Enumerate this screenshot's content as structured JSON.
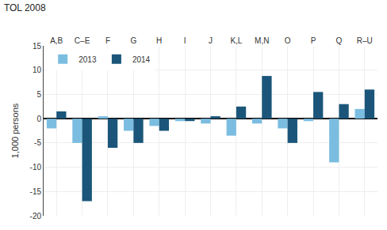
{
  "chart_data": {
    "type": "bar",
    "title": "TOL 2008",
    "ylabel": "1,000 persons",
    "categories": [
      "A,B",
      "C–E",
      "F",
      "G",
      "H",
      "I",
      "J",
      "K,L",
      "M,N",
      "O",
      "P",
      "Q",
      "R–U"
    ],
    "series": [
      {
        "name": "2013",
        "color": "#7bbde0",
        "values": [
          -2.0,
          -5.0,
          0.5,
          -2.5,
          -1.5,
          -0.5,
          -1.0,
          -3.5,
          -1.0,
          -2.0,
          -0.5,
          -9.0,
          2.0
        ]
      },
      {
        "name": "2014",
        "color": "#1b567a",
        "values": [
          1.5,
          -17.0,
          -6.0,
          -5.0,
          -2.5,
          -0.5,
          0.5,
          2.5,
          8.8,
          -5.0,
          5.5,
          3.0,
          6.0
        ]
      }
    ],
    "ylim": [
      -20,
      15
    ],
    "yticks": [
      -20,
      -15,
      -10,
      -5,
      0,
      5,
      10,
      15
    ],
    "grid": true,
    "legend": "upper left"
  }
}
